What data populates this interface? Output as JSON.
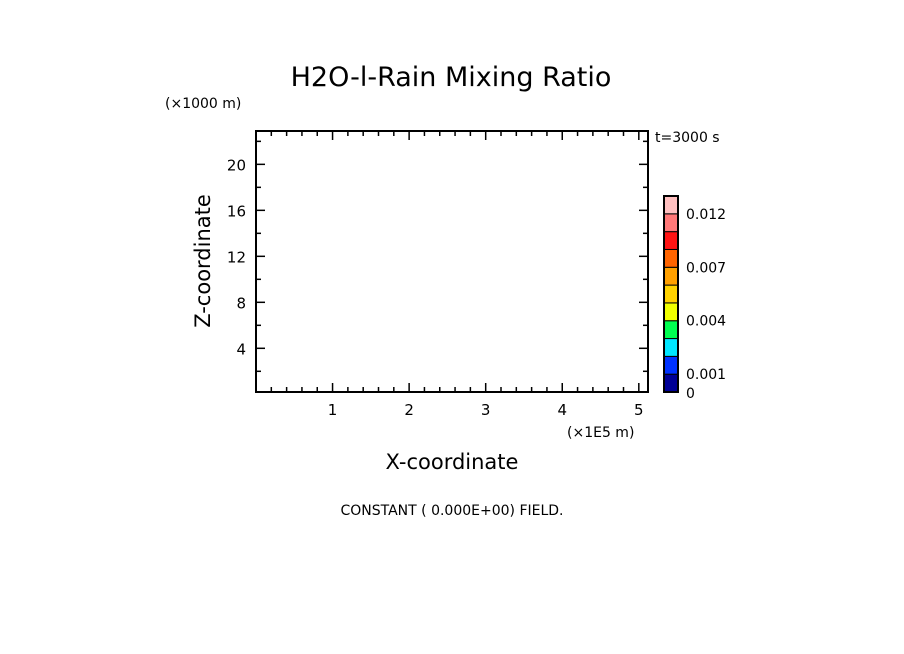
{
  "chart_data": {
    "type": "heatmap",
    "title": "H2O-l-Rain Mixing Ratio",
    "xlabel": "X-coordinate",
    "ylabel": "Z-coordinate",
    "x_unit": "(×1E5 m)",
    "y_unit": "(×1000 m)",
    "time_label": "t=3000 s",
    "xlim": [
      0,
      5.12
    ],
    "ylim": [
      0.2,
      22.9
    ],
    "x_ticks": [
      1,
      2,
      3,
      4,
      5
    ],
    "x_tick_labels": [
      "1",
      "2",
      "3",
      "4",
      "5"
    ],
    "x_minor_step": 0.2,
    "y_ticks": [
      4,
      8,
      12,
      16,
      20
    ],
    "y_tick_labels": [
      "4",
      "8",
      "12",
      "16",
      "20"
    ],
    "y_minor_step": 2,
    "field_note": "CONSTANT ( 0.000E+00) FIELD.",
    "colorbar": {
      "colors": [
        "#000096",
        "#0032ff",
        "#00e6ff",
        "#00ff50",
        "#f0ff00",
        "#ffd200",
        "#ffa000",
        "#ff6400",
        "#ff1414",
        "#ff7878",
        "#ffc0c0"
      ],
      "labels": [
        {
          "text": "0",
          "level": 0
        },
        {
          "text": "0.001",
          "level": 1
        },
        {
          "text": "0.004",
          "level": 4
        },
        {
          "text": "0.007",
          "level": 7
        },
        {
          "text": "0.012",
          "level": 10
        }
      ]
    }
  }
}
